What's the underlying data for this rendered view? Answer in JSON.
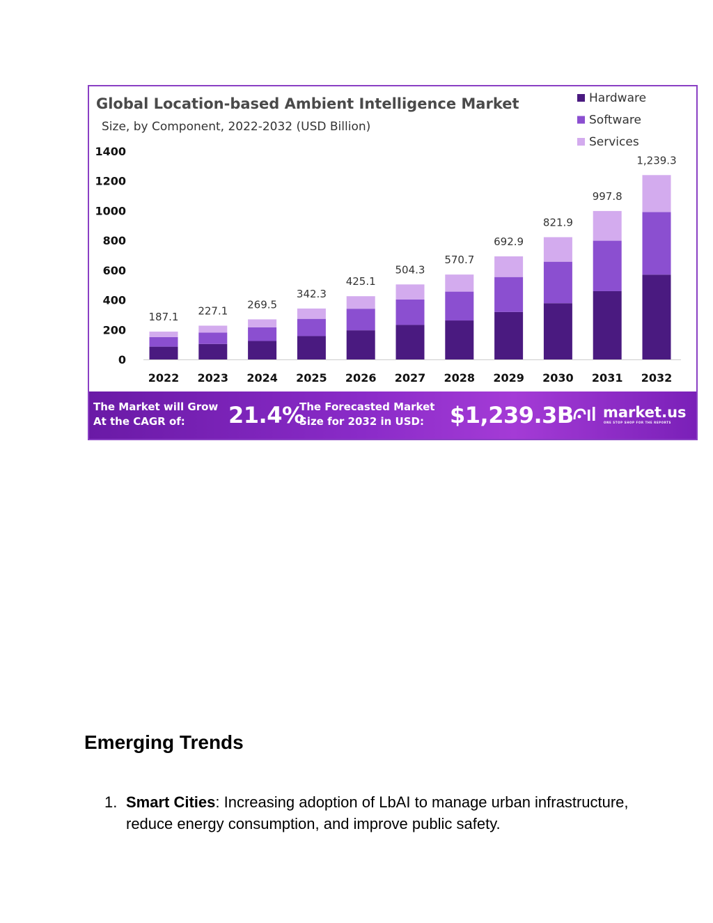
{
  "chart_data": {
    "type": "bar",
    "stacked": true,
    "title": "Global Location-based Ambient Intelligence Market",
    "subtitle": "Size, by Component, 2022-2032 (USD Billion)",
    "categories": [
      "2022",
      "2023",
      "2024",
      "2025",
      "2026",
      "2027",
      "2028",
      "2029",
      "2030",
      "2031",
      "2032"
    ],
    "totals_labels": [
      "187.1",
      "227.1",
      "269.5",
      "342.3",
      "425.1",
      "504.3",
      "570.7",
      "692.9",
      "821.9",
      "997.8",
      "1,239.3"
    ],
    "series": [
      {
        "name": "Hardware",
        "color": "#4a1a80",
        "values": [
          86,
          104,
          124,
          157,
          196,
          232,
          262,
          319,
          378,
          459,
          570
        ]
      },
      {
        "name": "Software",
        "color": "#8b4fd0",
        "values": [
          64,
          77,
          92,
          116,
          145,
          171,
          194,
          235,
          279,
          339,
          421
        ]
      },
      {
        "name": "Services",
        "color": "#d3abee",
        "values": [
          37.1,
          46.1,
          53.5,
          69.3,
          84.1,
          101.3,
          114.7,
          138.9,
          164.9,
          199.8,
          248.3
        ]
      }
    ],
    "yticks": [
      "0",
      "200",
      "400",
      "600",
      "800",
      "1000",
      "1200",
      "1400"
    ],
    "ylim": [
      0,
      1400
    ],
    "legend_position": "top-right",
    "grid": false
  },
  "banner": {
    "cagr_label_1": "The Market will Grow",
    "cagr_label_2": "At the CAGR of:",
    "cagr_value": "21.4%",
    "forecast_label_1": "The Forecasted Market",
    "forecast_label_2": "Size for 2032 in USD:",
    "forecast_value": "$1,239.3B",
    "logo_text": "market.us",
    "logo_tagline": "ONE STOP SHOP FOR THE REPORTS"
  },
  "section": {
    "heading": "Emerging Trends",
    "items": [
      {
        "number": "1.",
        "title": "Smart Cities",
        "text": ": Increasing adoption of LbAI to manage urban infrastructure, reduce energy consumption, and improve public safety."
      }
    ]
  }
}
